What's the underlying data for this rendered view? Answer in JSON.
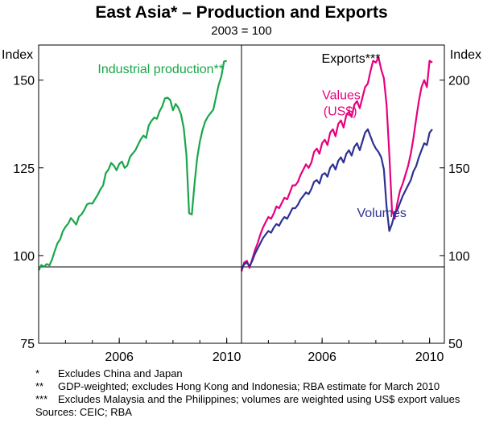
{
  "chart_data": {
    "type": "line",
    "title": "East Asia* – Production and Exports",
    "subtitle": "2003 = 100",
    "x_range": [
      2003.0,
      2010.55
    ],
    "x_ticks": [
      2006,
      2010
    ],
    "colors": {
      "industrial_production": "#1aa64a",
      "values": "#e6007e",
      "volumes": "#2e3192"
    },
    "panels": [
      {
        "id": "left",
        "axis_label": "Index",
        "ylim": [
          75,
          160
        ],
        "y_ticks": [
          75,
          100,
          125,
          150
        ],
        "series": [
          {
            "name": "Industrial production**",
            "x": [
              2003.0,
              2003.1,
              2003.2,
              2003.3,
              2003.4,
              2003.5,
              2003.6,
              2003.7,
              2003.8,
              2003.9,
              2004.0,
              2004.1,
              2004.2,
              2004.3,
              2004.4,
              2004.5,
              2004.6,
              2004.7,
              2004.8,
              2004.9,
              2005.0,
              2005.1,
              2005.2,
              2005.3,
              2005.4,
              2005.5,
              2005.6,
              2005.7,
              2005.8,
              2005.9,
              2006.0,
              2006.1,
              2006.2,
              2006.3,
              2006.4,
              2006.5,
              2006.6,
              2006.7,
              2006.8,
              2006.9,
              2007.0,
              2007.1,
              2007.2,
              2007.3,
              2007.4,
              2007.5,
              2007.6,
              2007.7,
              2007.8,
              2007.9,
              2008.0,
              2008.1,
              2008.2,
              2008.3,
              2008.4,
              2008.5,
              2008.6,
              2008.7,
              2008.8,
              2008.9,
              2009.0,
              2009.1,
              2009.2,
              2009.3,
              2009.4,
              2009.5,
              2009.6,
              2009.7,
              2009.8,
              2009.9,
              2010.0,
              2010.1,
              2010.2
            ],
            "values": [
              95.8,
              97.3,
              96.8,
              97.6,
              97.2,
              98.9,
              101.3,
              103.5,
              104.6,
              106.9,
              108.2,
              109.1,
              110.7,
              109.8,
              108.8,
              111.1,
              111.8,
              113.0,
              114.6,
              114.9,
              114.8,
              116.1,
              117.3,
              118.9,
              120.0,
              123.5,
              124.5,
              126.4,
              125.6,
              124.3,
              126.1,
              126.8,
              125.0,
              125.6,
              128.1,
              129.1,
              130.0,
              131.6,
              133.1,
              134.2,
              133.5,
              137.1,
              138.4,
              139.3,
              139.0,
              141.1,
              142.5,
              144.8,
              145.0,
              144.3,
              141.4,
              143.2,
              142.1,
              140.2,
              136.4,
              128.6,
              112.1,
              111.7,
              120.3,
              127.7,
              132.5,
              135.8,
              138.2,
              139.6,
              140.6,
              141.6,
              145.1,
              148.6,
              151.1,
              155.3,
              155.5,
              null,
              null
            ]
          }
        ],
        "annotations": [
          {
            "text": "Industrial production**",
            "x": 2005.2,
            "y": 152,
            "series": "industrial_production"
          }
        ]
      },
      {
        "id": "right",
        "axis_label": "Index",
        "ylim": [
          50,
          220
        ],
        "y_ticks": [
          50,
          100,
          150,
          200
        ],
        "panel_title": "Exports***",
        "series": [
          {
            "name": "Values (US$)",
            "x": [
              2003.0,
              2003.1,
              2003.2,
              2003.3,
              2003.4,
              2003.5,
              2003.6,
              2003.7,
              2003.8,
              2003.9,
              2004.0,
              2004.1,
              2004.2,
              2004.3,
              2004.4,
              2004.5,
              2004.6,
              2004.7,
              2004.8,
              2004.9,
              2005.0,
              2005.1,
              2005.2,
              2005.3,
              2005.4,
              2005.5,
              2005.6,
              2005.7,
              2005.8,
              2005.9,
              2006.0,
              2006.1,
              2006.2,
              2006.3,
              2006.4,
              2006.5,
              2006.6,
              2006.7,
              2006.8,
              2006.9,
              2007.0,
              2007.1,
              2007.2,
              2007.3,
              2007.4,
              2007.5,
              2007.6,
              2007.7,
              2007.8,
              2007.9,
              2008.0,
              2008.1,
              2008.2,
              2008.3,
              2008.4,
              2008.5,
              2008.6,
              2008.7,
              2008.8,
              2008.9,
              2009.0,
              2009.1,
              2009.2,
              2009.3,
              2009.4,
              2009.5,
              2009.6,
              2009.7,
              2009.8,
              2009.9,
              2010.0,
              2010.1
            ],
            "values": [
              91,
              96,
              97,
              93,
              98,
              103,
              107,
              112,
              116,
              119,
              122,
              121,
              124,
              128,
              127,
              130,
              133,
              132,
              136,
              140,
              140,
              142,
              146,
              149,
              152,
              150,
              153,
              159,
              161,
              158,
              164,
              166,
              163,
              170,
              172,
              168,
              175,
              177,
              173,
              180,
              182,
              179,
              186,
              188,
              184,
              190,
              196,
              198,
              205,
              211,
              210,
              213,
              206,
              201,
              186,
              158,
              126,
              121,
              130,
              137,
              141,
              146,
              151,
              158,
              167,
              178,
              188,
              196,
              200,
              196,
              211,
              210
            ]
          },
          {
            "name": "Volumes",
            "x": [
              2003.0,
              2003.1,
              2003.2,
              2003.3,
              2003.4,
              2003.5,
              2003.6,
              2003.7,
              2003.8,
              2003.9,
              2004.0,
              2004.1,
              2004.2,
              2004.3,
              2004.4,
              2004.5,
              2004.6,
              2004.7,
              2004.8,
              2004.9,
              2005.0,
              2005.1,
              2005.2,
              2005.3,
              2005.4,
              2005.5,
              2005.6,
              2005.7,
              2005.8,
              2005.9,
              2006.0,
              2006.1,
              2006.2,
              2006.3,
              2006.4,
              2006.5,
              2006.6,
              2006.7,
              2006.8,
              2006.9,
              2007.0,
              2007.1,
              2007.2,
              2007.3,
              2007.4,
              2007.5,
              2007.6,
              2007.7,
              2007.8,
              2007.9,
              2008.0,
              2008.1,
              2008.2,
              2008.3,
              2008.4,
              2008.5,
              2008.6,
              2008.7,
              2008.8,
              2008.9,
              2009.0,
              2009.1,
              2009.2,
              2009.3,
              2009.4,
              2009.5,
              2009.6,
              2009.7,
              2009.8,
              2009.9,
              2010.0,
              2010.1
            ],
            "values": [
              92,
              95,
              96,
              94,
              97,
              101,
              104,
              107,
              110,
              112,
              114,
              113,
              116,
              118,
              117,
              120,
              122,
              121,
              124,
              127,
              127,
              129,
              132,
              134,
              136,
              135,
              138,
              142,
              143,
              141,
              146,
              147,
              145,
              150,
              152,
              149,
              154,
              156,
              153,
              158,
              160,
              157,
              162,
              164,
              160,
              165,
              170,
              172,
              168,
              164,
              161,
              159,
              156,
              149,
              128,
              114,
              118,
              124,
              126,
              130,
              134,
              137,
              140,
              143,
              148,
              151,
              156,
              160,
              164,
              163,
              170,
              172
            ]
          }
        ],
        "annotations": [
          {
            "text": "Values",
            "x": 2006.0,
            "y": 189,
            "series": "values"
          },
          {
            "text": "(US$)",
            "x": 2006.05,
            "y": 180,
            "series": "values"
          },
          {
            "text": "Volumes",
            "x": 2007.3,
            "y": 122,
            "series": "volumes"
          }
        ]
      }
    ]
  },
  "footnotes": [
    {
      "marker": "*",
      "text": "Excludes China and Japan"
    },
    {
      "marker": "**",
      "text": "GDP-weighted; excludes Hong Kong and Indonesia; RBA estimate for March 2010"
    },
    {
      "marker": "***",
      "text": "Excludes Malaysia and the Philippines; volumes are weighted using US$ export values"
    }
  ],
  "sources": "Sources: CEIC; RBA"
}
